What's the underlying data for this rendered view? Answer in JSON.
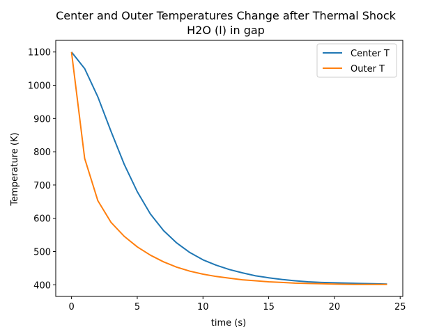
{
  "chart_data": {
    "type": "line",
    "title": "Center and Outer Temperatures Change after Thermal Shock",
    "subtitle": "H2O (l) in gap",
    "xlabel": "time (s)",
    "ylabel": "Temperature (K)",
    "xlim": [
      -1.2,
      25.2
    ],
    "ylim": [
      365,
      1135
    ],
    "xticks": [
      0,
      5,
      10,
      15,
      20,
      25
    ],
    "yticks": [
      400,
      500,
      600,
      700,
      800,
      900,
      1000,
      1100
    ],
    "grid": false,
    "legend": "top-right",
    "x": [
      0,
      1,
      2,
      3,
      4,
      5,
      6,
      7,
      8,
      9,
      10,
      11,
      12,
      13,
      14,
      15,
      16,
      17,
      18,
      19,
      20,
      21,
      22,
      23,
      24
    ],
    "series": [
      {
        "name": "Center T",
        "color": "#1f77b4",
        "values": [
          1100,
          1050,
          965,
          862,
          763,
          680,
          613,
          563,
          526,
          497,
          475,
          459,
          446,
          436,
          427,
          421,
          416,
          412,
          409,
          407,
          406,
          405,
          404,
          403,
          402
        ]
      },
      {
        "name": "Outer T",
        "color": "#ff7f0e",
        "values": [
          1100,
          780,
          653,
          588,
          546,
          514,
          489,
          469,
          453,
          441,
          432,
          425,
          420,
          415,
          412,
          409,
          407,
          405,
          404,
          403,
          402,
          401.5,
          401,
          401,
          401
        ]
      }
    ]
  }
}
